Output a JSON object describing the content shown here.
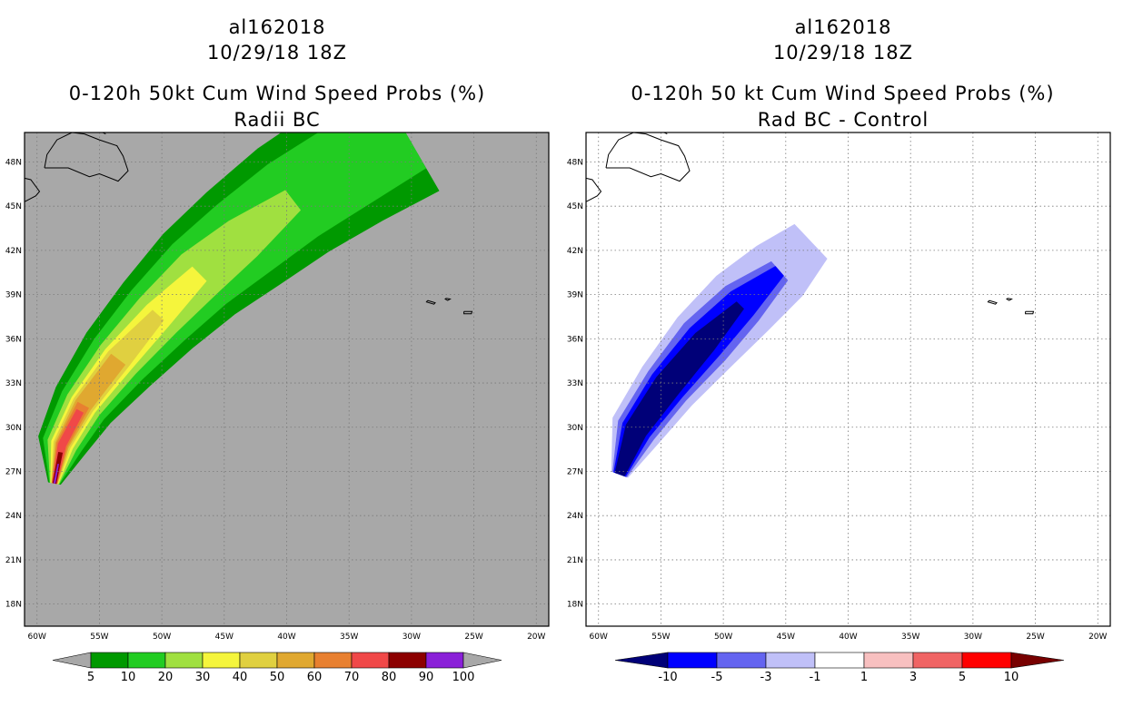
{
  "chart_data": [
    {
      "type": "heatmap",
      "storm_id": "al162018",
      "datetime": "10/29/18 18Z",
      "title": "0-120h 50kt Cum Wind Speed Probs (%)",
      "subtitle": "Radii BC",
      "xlim": [
        -61,
        -19
      ],
      "ylim": [
        16.5,
        50
      ],
      "x_ticks": [
        "60W",
        "55W",
        "50W",
        "45W",
        "40W",
        "35W",
        "30W",
        "25W",
        "20W"
      ],
      "y_ticks": [
        "18N",
        "21N",
        "24N",
        "27N",
        "30N",
        "33N",
        "36N",
        "39N",
        "42N",
        "45N",
        "48N"
      ],
      "background_color": "#a8a8a8",
      "colorbar": {
        "levels": [
          "5",
          "10",
          "20",
          "30",
          "40",
          "50",
          "60",
          "70",
          "80",
          "90",
          "100"
        ],
        "colors": [
          "#009900",
          "#22cc22",
          "#a0e040",
          "#f5f53c",
          "#e0d040",
          "#e0a830",
          "#e88030",
          "#f04848",
          "#8c0000",
          "#8a20d8"
        ],
        "extend_low_color": "#a8a8a8",
        "extend_high_color": "#a8a8a8"
      },
      "track": [
        {
          "lon": -58.6,
          "lat": 26.2
        },
        {
          "lon": -58.0,
          "lat": 28.8
        },
        {
          "lon": -56.3,
          "lat": 31.5
        },
        {
          "lon": -53.5,
          "lat": 34.6
        },
        {
          "lon": -50.3,
          "lat": 37.6
        },
        {
          "lon": -47.0,
          "lat": 40.4
        },
        {
          "lon": -43.5,
          "lat": 42.8
        },
        {
          "lon": -39.5,
          "lat": 45.4
        },
        {
          "lon": -35.0,
          "lat": 47.8
        },
        {
          "lon": -30.5,
          "lat": 50.0
        }
      ],
      "bands": [
        {
          "level": 5,
          "color": "#009900",
          "widths": [
            0.5,
            2.0,
            2.6,
            3.3,
            3.8,
            4.3,
            4.7,
            5.0,
            5.2,
            5.4
          ],
          "extent": 1.0
        },
        {
          "level": 10,
          "color": "#22cc22",
          "widths": [
            0.4,
            1.6,
            2.0,
            2.5,
            2.9,
            3.2,
            3.4,
            3.5,
            3.5,
            3.3
          ],
          "extent": 1.0
        },
        {
          "level": 20,
          "color": "#a0e040",
          "widths": [
            0.35,
            1.2,
            1.5,
            1.8,
            2.0,
            2.1,
            1.8,
            1.0
          ],
          "extent": 1.0
        },
        {
          "level": 30,
          "color": "#f5f53c",
          "widths": [
            0.3,
            0.9,
            1.1,
            1.3,
            1.2,
            0.8
          ],
          "extent": 1.0
        },
        {
          "level": 40,
          "color": "#e0d040",
          "widths": [
            0.25,
            0.7,
            0.9,
            1.0,
            0.6
          ],
          "extent": 1.0
        },
        {
          "level": 50,
          "color": "#e0a830",
          "widths": [
            0.22,
            0.55,
            0.7,
            0.7
          ],
          "extent": 1.0
        },
        {
          "level": 60,
          "color": "#e88030",
          "widths": [
            0.2,
            0.45,
            0.5
          ],
          "extent": 1.0
        },
        {
          "level": 70,
          "color": "#f04848",
          "widths": [
            0.18,
            0.32,
            0.3
          ],
          "extent": 0.85
        },
        {
          "level": 80,
          "color": "#8c0000",
          "widths": [
            0.14,
            0.16
          ],
          "extent": 0.8
        },
        {
          "level": 90,
          "color": "#8a20d8",
          "widths": [
            0.06,
            0.04
          ],
          "extent": 0.5
        }
      ]
    },
    {
      "type": "heatmap",
      "storm_id": "al162018",
      "datetime": "10/29/18 18Z",
      "title": "0-120h 50 kt Cum Wind Speed Probs (%)",
      "subtitle": "Rad BC - Control",
      "xlim": [
        -61,
        -19
      ],
      "ylim": [
        16.5,
        50
      ],
      "x_ticks": [
        "60W",
        "55W",
        "50W",
        "45W",
        "40W",
        "35W",
        "30W",
        "25W",
        "20W"
      ],
      "y_ticks": [
        "18N",
        "21N",
        "24N",
        "27N",
        "30N",
        "33N",
        "36N",
        "39N",
        "42N",
        "45N",
        "48N"
      ],
      "background_color": "#ffffff",
      "colorbar": {
        "levels": [
          "-10",
          "-5",
          "-3",
          "-1",
          "1",
          "3",
          "5",
          "10"
        ],
        "colors": [
          "#0000ff",
          "#6464f0",
          "#c0c0f8",
          "#ffffff",
          "#f8c0c0",
          "#f06464",
          "#ff0000"
        ],
        "extend_low_color": "#000078",
        "extend_high_color": "#780000"
      },
      "track": [
        {
          "lon": -58.3,
          "lat": 26.8
        },
        {
          "lon": -57.0,
          "lat": 29.8
        },
        {
          "lon": -54.5,
          "lat": 32.8
        },
        {
          "lon": -51.5,
          "lat": 35.8
        },
        {
          "lon": -48.5,
          "lat": 38.4
        },
        {
          "lon": -45.5,
          "lat": 40.6
        },
        {
          "lon": -43.0,
          "lat": 42.6
        }
      ],
      "bands": [
        {
          "level": -1,
          "color": "#c0c0f8",
          "widths": [
            0.7,
            2.1,
            2.5,
            2.9,
            3.0,
            2.7,
            1.9
          ],
          "extent": 1.0
        },
        {
          "level": -3,
          "color": "#6464f0",
          "widths": [
            0.6,
            1.6,
            1.9,
            2.2,
            1.9,
            1.0
          ],
          "extent": 1.0
        },
        {
          "level": -5,
          "color": "#0000ff",
          "widths": [
            0.5,
            1.2,
            1.5,
            1.6,
            1.3,
            0.5
          ],
          "extent": 1.0
        },
        {
          "level": -10,
          "color": "#000078",
          "widths": [
            0.4,
            0.9,
            1.1,
            1.0,
            0.4
          ],
          "extent": 0.95
        }
      ]
    }
  ]
}
